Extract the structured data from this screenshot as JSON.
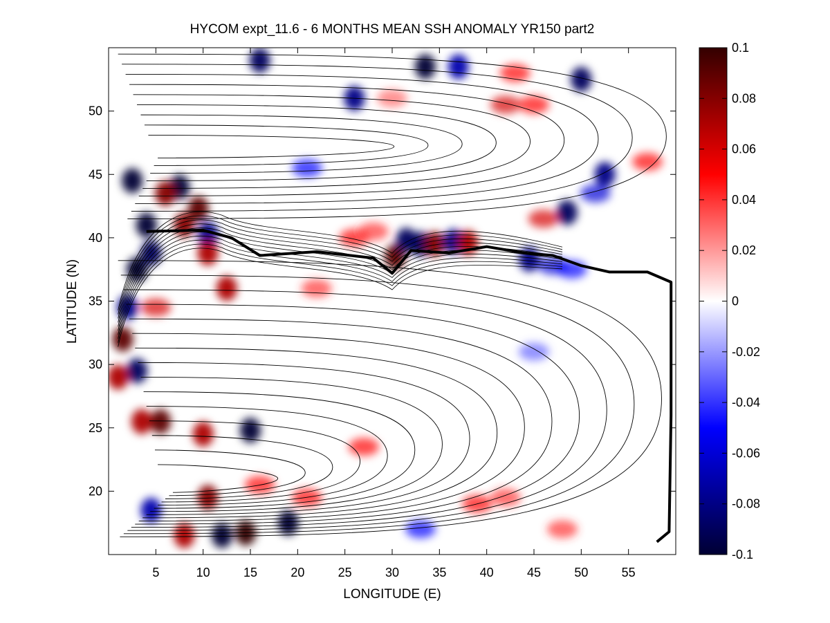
{
  "chart_data": {
    "type": "heatmap",
    "title": "HYCOM expt_11.6 - 6 MONTHS MEAN SSH ANOMALY YR150 part2",
    "xlabel": "LONGITUDE (E)",
    "ylabel": "LATITUDE (N)",
    "xlim": [
      0,
      60
    ],
    "ylim": [
      15,
      55
    ],
    "xticks": [
      5,
      10,
      15,
      20,
      25,
      30,
      35,
      40,
      45,
      50,
      55
    ],
    "yticks": [
      20,
      25,
      30,
      35,
      40,
      45,
      50
    ],
    "colorbar": {
      "range": [
        -0.1,
        0.1
      ],
      "ticks": [
        0.1,
        0.08,
        0.06,
        0.04,
        0.02,
        0,
        -0.02,
        -0.04,
        -0.06,
        -0.08,
        -0.1
      ],
      "tick_labels": [
        "0.1",
        "0.08",
        "0.06",
        "0.04",
        "0.02",
        "0",
        "-0.02",
        "-0.04",
        "-0.06",
        "-0.08",
        "-0.1"
      ],
      "colors": [
        "#000033",
        "#0000ff",
        "#ffffff",
        "#ff0000",
        "#330000"
      ]
    },
    "front_line": [
      [
        4,
        40.5
      ],
      [
        10,
        40.6
      ],
      [
        13,
        40
      ],
      [
        16,
        38.6
      ],
      [
        22,
        38.9
      ],
      [
        28,
        38.4
      ],
      [
        30,
        37.2
      ],
      [
        32,
        39.0
      ],
      [
        36,
        38.8
      ],
      [
        40,
        39.3
      ],
      [
        44,
        38.8
      ],
      [
        47,
        38.6
      ],
      [
        50,
        37.8
      ],
      [
        53,
        37.3
      ],
      [
        57,
        37.3
      ],
      [
        59.5,
        36.5
      ],
      [
        59.5,
        26
      ],
      [
        59.3,
        16.8
      ],
      [
        58,
        16
      ]
    ],
    "anomalies": [
      {
        "lon": 2.5,
        "lat": 44.5,
        "value": -0.1
      },
      {
        "lon": 4,
        "lat": 41,
        "value": -0.1
      },
      {
        "lon": 7.5,
        "lat": 44,
        "value": -0.1
      },
      {
        "lon": 6,
        "lat": 43.5,
        "value": 0.08
      },
      {
        "lon": 9.5,
        "lat": 42.3,
        "value": 0.09
      },
      {
        "lon": 10.5,
        "lat": 40.3,
        "value": -0.08
      },
      {
        "lon": 8,
        "lat": 41,
        "value": 0.08
      },
      {
        "lon": 3,
        "lat": 37.5,
        "value": -0.1
      },
      {
        "lon": 4.5,
        "lat": 38.8,
        "value": -0.09
      },
      {
        "lon": 2,
        "lat": 34.5,
        "value": -0.08
      },
      {
        "lon": 1.5,
        "lat": 32,
        "value": 0.09
      },
      {
        "lon": 3,
        "lat": 29.5,
        "value": -0.09
      },
      {
        "lon": 1,
        "lat": 29,
        "value": 0.07
      },
      {
        "lon": 5,
        "lat": 34.5,
        "value": 0.06
      },
      {
        "lon": 10.5,
        "lat": 38.8,
        "value": 0.07
      },
      {
        "lon": 12.5,
        "lat": 36,
        "value": 0.07
      },
      {
        "lon": 22,
        "lat": 36,
        "value": 0.04
      },
      {
        "lon": 3.5,
        "lat": 25.5,
        "value": 0.07
      },
      {
        "lon": 5.5,
        "lat": 25.5,
        "value": 0.09
      },
      {
        "lon": 15,
        "lat": 24.8,
        "value": -0.1
      },
      {
        "lon": 10,
        "lat": 24.5,
        "value": 0.07
      },
      {
        "lon": 10.5,
        "lat": 19.5,
        "value": 0.08
      },
      {
        "lon": 8,
        "lat": 16.5,
        "value": 0.07
      },
      {
        "lon": 12,
        "lat": 16.5,
        "value": -0.1
      },
      {
        "lon": 14.5,
        "lat": 16.7,
        "value": 0.1
      },
      {
        "lon": 19,
        "lat": 17.5,
        "value": -0.1
      },
      {
        "lon": 4.5,
        "lat": 18.5,
        "value": -0.07
      },
      {
        "lon": 16,
        "lat": 20.5,
        "value": 0.05
      },
      {
        "lon": 21,
        "lat": 19.5,
        "value": 0.05
      },
      {
        "lon": 26,
        "lat": 40,
        "value": 0.05
      },
      {
        "lon": 28,
        "lat": 40.5,
        "value": 0.04
      },
      {
        "lon": 30.3,
        "lat": 38.5,
        "value": 0.09
      },
      {
        "lon": 31.5,
        "lat": 39.8,
        "value": -0.09
      },
      {
        "lon": 33,
        "lat": 39.5,
        "value": -0.09
      },
      {
        "lon": 34.5,
        "lat": 39.5,
        "value": 0.08
      },
      {
        "lon": 36.5,
        "lat": 39.7,
        "value": -0.08
      },
      {
        "lon": 38,
        "lat": 39.6,
        "value": 0.07
      },
      {
        "lon": 44.5,
        "lat": 38.3,
        "value": -0.08
      },
      {
        "lon": 47,
        "lat": 37.8,
        "value": -0.06
      },
      {
        "lon": 49,
        "lat": 37.5,
        "value": -0.05
      },
      {
        "lon": 48.5,
        "lat": 42,
        "value": -0.09
      },
      {
        "lon": 46,
        "lat": 41.5,
        "value": 0.06
      },
      {
        "lon": 51.5,
        "lat": 43.5,
        "value": -0.06
      },
      {
        "lon": 52.5,
        "lat": 45,
        "value": -0.08
      },
      {
        "lon": 57,
        "lat": 46,
        "value": 0.05
      },
      {
        "lon": 16,
        "lat": 54,
        "value": -0.09
      },
      {
        "lon": 26,
        "lat": 51,
        "value": -0.08
      },
      {
        "lon": 33.5,
        "lat": 53.5,
        "value": -0.1
      },
      {
        "lon": 37,
        "lat": 53.5,
        "value": -0.07
      },
      {
        "lon": 43,
        "lat": 53,
        "value": 0.05
      },
      {
        "lon": 50,
        "lat": 52.5,
        "value": -0.09
      },
      {
        "lon": 42,
        "lat": 50.5,
        "value": 0.06
      },
      {
        "lon": 45,
        "lat": 50.5,
        "value": 0.05
      },
      {
        "lon": 21,
        "lat": 45.5,
        "value": -0.05
      },
      {
        "lon": 30,
        "lat": 51,
        "value": 0.03
      },
      {
        "lon": 39,
        "lat": 19,
        "value": 0.05
      },
      {
        "lon": 42,
        "lat": 19.5,
        "value": 0.04
      },
      {
        "lon": 33,
        "lat": 17,
        "value": -0.05
      },
      {
        "lon": 48,
        "lat": 17,
        "value": 0.04
      },
      {
        "lon": 27,
        "lat": 23.5,
        "value": 0.05
      },
      {
        "lon": 45,
        "lat": 31,
        "value": -0.03
      }
    ]
  }
}
